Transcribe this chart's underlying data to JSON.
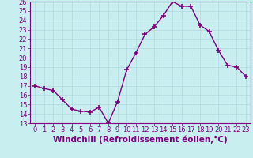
{
  "x": [
    0,
    1,
    2,
    3,
    4,
    5,
    6,
    7,
    8,
    9,
    10,
    11,
    12,
    13,
    14,
    15,
    16,
    17,
    18,
    19,
    20,
    21,
    22,
    23
  ],
  "y": [
    17.0,
    16.7,
    16.5,
    15.5,
    14.5,
    14.3,
    14.2,
    14.7,
    13.0,
    15.3,
    18.7,
    20.5,
    22.5,
    23.3,
    24.5,
    26.0,
    25.5,
    25.5,
    23.5,
    22.8,
    20.8,
    19.2,
    19.0,
    18.0
  ],
  "line_color": "#800080",
  "marker": "+",
  "marker_size": 5,
  "marker_lw": 1.2,
  "bg_color": "#c8eef0",
  "grid_color": "#b0d8dc",
  "xlabel": "Windchill (Refroidissement éolien,°C)",
  "ylim": [
    13,
    26
  ],
  "xlim": [
    -0.5,
    23.5
  ],
  "yticks": [
    13,
    14,
    15,
    16,
    17,
    18,
    19,
    20,
    21,
    22,
    23,
    24,
    25,
    26
  ],
  "xticks": [
    0,
    1,
    2,
    3,
    4,
    5,
    6,
    7,
    8,
    9,
    10,
    11,
    12,
    13,
    14,
    15,
    16,
    17,
    18,
    19,
    20,
    21,
    22,
    23
  ],
  "tick_color": "#800080",
  "tick_fontsize": 6,
  "xlabel_fontsize": 7.5,
  "line_width": 1.0
}
